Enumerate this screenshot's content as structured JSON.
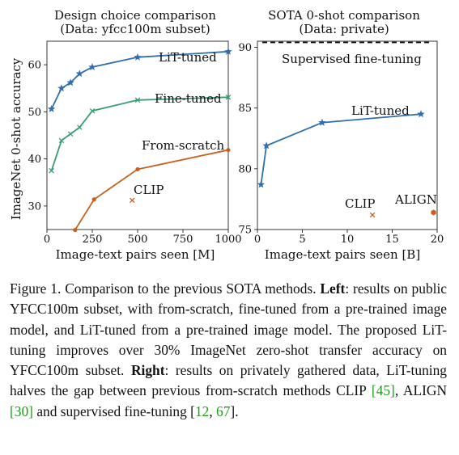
{
  "chart_data": [
    {
      "type": "line",
      "title": "Design choice comparison",
      "subtitle": "(Data: yfcc100m subset)",
      "xlabel": "Image-text pairs seen [M]",
      "ylabel": "ImageNet 0-shot accuracy",
      "xlim": [
        0,
        1000
      ],
      "ylim": [
        25,
        65
      ],
      "xticks": [
        0,
        250,
        500,
        750,
        1000
      ],
      "yticks": [
        30,
        40,
        50,
        60
      ],
      "grid": false,
      "series": [
        {
          "name": "LiT-tuned",
          "color": "#2f6fad",
          "marker": "star",
          "x": [
            25,
            80,
            130,
            180,
            250,
            500,
            1000
          ],
          "y": [
            50.6,
            55.0,
            56.2,
            58.1,
            59.5,
            61.6,
            62.8
          ]
        },
        {
          "name": "Fine-tuned",
          "color": "#3a9e72",
          "marker": "x",
          "x": [
            25,
            80,
            130,
            180,
            250,
            500,
            1000
          ],
          "y": [
            37.5,
            43.9,
            45.3,
            46.7,
            50.2,
            52.5,
            53.1
          ]
        },
        {
          "name": "From-scratch",
          "color": "#c8601f",
          "marker": "dot",
          "x": [
            155,
            260,
            500,
            1000
          ],
          "y": [
            24.9,
            31.4,
            37.8,
            41.9
          ]
        }
      ],
      "points": [
        {
          "name": "CLIP",
          "color": "#c8601f",
          "marker": "x",
          "x": [
            470
          ],
          "y": [
            31.2
          ]
        }
      ]
    },
    {
      "type": "line",
      "title": "SOTA 0-shot comparison",
      "subtitle": "(Data: private)",
      "xlabel": "Image-text pairs seen [B]",
      "ylabel": "",
      "xlim": [
        0,
        20
      ],
      "ylim": [
        75,
        90.5
      ],
      "xticks": [
        0,
        5,
        10,
        15,
        20
      ],
      "yticks": [
        75,
        80,
        85,
        90
      ],
      "grid": false,
      "series": [
        {
          "name": "LiT-tuned",
          "color": "#2f6fad",
          "marker": "star",
          "x": [
            0.4,
            1.0,
            7.2,
            18.2
          ],
          "y": [
            78.7,
            81.9,
            83.8,
            84.5
          ]
        }
      ],
      "reference_lines": [
        {
          "name": "Supervised fine-tuning",
          "y": 90.4,
          "style": "dashed"
        }
      ],
      "points": [
        {
          "name": "CLIP",
          "color": "#c8601f",
          "marker": "x",
          "x": [
            12.8
          ],
          "y": [
            76.2
          ]
        },
        {
          "name": "ALIGN",
          "color": "#c8601f",
          "marker": "hexagon",
          "x": [
            19.6
          ],
          "y": [
            76.4
          ]
        }
      ]
    }
  ],
  "caption": {
    "label": "Figure 1.",
    "text1": " Comparison to the previous SOTA methods. ",
    "left_bold": "Left",
    "text2": ": results on public YFCC100m subset, with from-scratch, fine-tuned from a pre-trained image model, and LiT-tuned from a pre-trained image model. The proposed LiT-tuning improves over 30% ImageNet zero-shot transfer accuracy on YFCC100m subset. ",
    "right_bold": "Right",
    "text3": ": results on privately gathered data, LiT-tuning halves the gap between previous from-scratch methods CLIP ",
    "cite1": "[45]",
    "text4": ", ALIGN ",
    "cite2": "[30]",
    "text5": " and supervised fine-tuning ",
    "cite3_open": "[",
    "cite3a": "12",
    "cite3_sep": ", ",
    "cite3b": "67",
    "cite3_close": "]",
    "text6": "."
  }
}
